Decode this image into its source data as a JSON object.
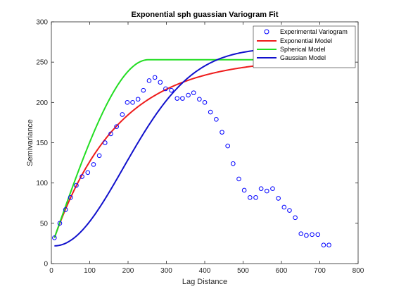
{
  "chart_data": {
    "type": "line",
    "title": "Exponential sph guassian Variogram Fit",
    "xlabel": "Lag Distance",
    "ylabel": "Semivariance",
    "xlim": [
      0,
      800
    ],
    "ylim": [
      0,
      300
    ],
    "xticks": [
      0,
      100,
      200,
      300,
      400,
      500,
      600,
      700,
      800
    ],
    "yticks": [
      0,
      50,
      100,
      150,
      200,
      250,
      300
    ],
    "grid": false,
    "legend_position": "top-right",
    "experimental": {
      "name": "Experimental Variogram",
      "color": "#0000ff",
      "x": [
        8,
        22,
        37,
        50,
        65,
        80,
        95,
        110,
        125,
        140,
        155,
        170,
        185,
        198,
        212,
        226,
        240,
        255,
        270,
        284,
        298,
        313,
        328,
        342,
        357,
        371,
        386,
        400,
        415,
        430,
        445,
        460,
        474,
        489,
        503,
        518,
        533,
        547,
        562,
        577,
        592,
        607,
        621,
        636,
        651,
        665,
        680,
        695,
        710,
        724
      ],
      "y": [
        32,
        50,
        67,
        82,
        97,
        108,
        113,
        123,
        134,
        150,
        161,
        170,
        185,
        200,
        200,
        204,
        215,
        227,
        231,
        225,
        217,
        215,
        205,
        205,
        209,
        212,
        204,
        200,
        188,
        179,
        163,
        146,
        124,
        105,
        91,
        82,
        82,
        93,
        90,
        93,
        81,
        70,
        66,
        57,
        37,
        35,
        36,
        36,
        23,
        23
      ]
    },
    "series": [
      {
        "name": "Exponential Model",
        "color": "#ee1c1c",
        "model": "exponential",
        "nugget": 32,
        "sill": 255,
        "range": 500,
        "x_from": 8,
        "x_to": 724
      },
      {
        "name": "Spherical Model",
        "color": "#22dd22",
        "model": "spherical",
        "nugget": 32,
        "sill": 253,
        "range": 245,
        "x_from": 8,
        "x_to": 724
      },
      {
        "name": "Gaussian Model",
        "color": "#1111cc",
        "model": "gaussian",
        "nugget": 22,
        "sill": 268,
        "range": 440,
        "x_from": 8,
        "x_to": 560
      }
    ]
  }
}
